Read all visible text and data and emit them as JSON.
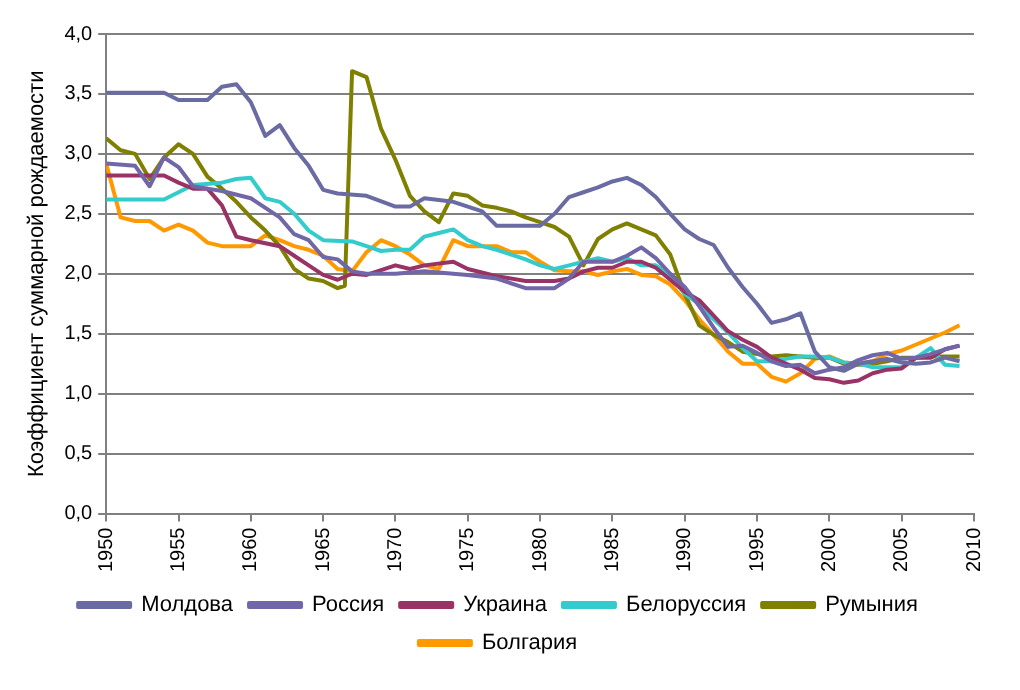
{
  "chart_data": {
    "type": "line",
    "ylabel": "Коэффициент суммарной рождаемости",
    "xlim": [
      1950,
      2010
    ],
    "xticks": [
      1950,
      1955,
      1960,
      1965,
      1970,
      1975,
      1980,
      1985,
      1990,
      1995,
      2000,
      2005,
      2010
    ],
    "ylim": [
      0,
      4
    ],
    "yticks": [
      {
        "value": 0,
        "label": "0,0"
      },
      {
        "value": 0.5,
        "label": "0,5"
      },
      {
        "value": 1,
        "label": "1,0"
      },
      {
        "value": 1.5,
        "label": "1,5"
      },
      {
        "value": 2,
        "label": "2,0"
      },
      {
        "value": 2.5,
        "label": "2,5"
      },
      {
        "value": 3,
        "label": "3,0"
      },
      {
        "value": 3.5,
        "label": "3,5"
      },
      {
        "value": 4,
        "label": "4,0"
      }
    ],
    "grid": "y",
    "legend": "bottom",
    "marker": "none",
    "line_style": "solid",
    "series": [
      {
        "name": "Молдова",
        "color": "#6b6ba3",
        "x": [
          1950,
          1954,
          1955,
          1957,
          1958,
          1959,
          1960,
          1961,
          1962,
          1963,
          1964,
          1965,
          1966,
          1968,
          1970,
          1971,
          1972,
          1974,
          1976,
          1977,
          1980,
          1981,
          1982,
          1983,
          1984,
          1985,
          1986,
          1987,
          1988,
          1989,
          1990,
          1991,
          1992,
          1993,
          1994,
          1995,
          1996,
          1997,
          1998,
          1999,
          2000,
          2001,
          2002,
          2003,
          2004,
          2005,
          2006,
          2007,
          2008,
          2009
        ],
        "values": [
          3.51,
          3.51,
          3.45,
          3.45,
          3.56,
          3.58,
          3.43,
          3.15,
          3.24,
          3.05,
          2.9,
          2.7,
          2.67,
          2.65,
          2.56,
          2.56,
          2.63,
          2.6,
          2.52,
          2.4,
          2.4,
          2.5,
          2.64,
          2.68,
          2.72,
          2.77,
          2.8,
          2.74,
          2.64,
          2.5,
          2.37,
          2.29,
          2.24,
          2.05,
          1.89,
          1.75,
          1.59,
          1.62,
          1.67,
          1.35,
          1.22,
          1.19,
          1.25,
          1.27,
          1.29,
          1.26,
          1.25,
          1.26,
          1.3,
          1.27
        ]
      },
      {
        "name": "Россия",
        "color": "#7066a8",
        "x": [
          1950,
          1952,
          1953,
          1954,
          1955,
          1956,
          1957,
          1958,
          1960,
          1962,
          1963,
          1964,
          1965,
          1966,
          1967,
          1968,
          1970,
          1972,
          1975,
          1977,
          1979,
          1981,
          1982,
          1983,
          1984,
          1985,
          1986,
          1987,
          1988,
          1989,
          1990,
          1991,
          1992,
          1993,
          1994,
          1995,
          1996,
          1997,
          1998,
          1999,
          2000,
          2001,
          2002,
          2003,
          2004,
          2005,
          2006,
          2007,
          2008,
          2009
        ],
        "values": [
          2.92,
          2.9,
          2.73,
          2.97,
          2.89,
          2.73,
          2.71,
          2.69,
          2.63,
          2.47,
          2.33,
          2.28,
          2.14,
          2.12,
          2.02,
          2.0,
          2.0,
          2.02,
          1.99,
          1.96,
          1.88,
          1.88,
          1.96,
          2.1,
          2.1,
          2.1,
          2.15,
          2.22,
          2.13,
          2.0,
          1.89,
          1.73,
          1.55,
          1.39,
          1.4,
          1.34,
          1.27,
          1.23,
          1.24,
          1.17,
          1.2,
          1.22,
          1.28,
          1.32,
          1.34,
          1.29,
          1.3,
          1.33,
          1.37,
          1.4
        ]
      },
      {
        "name": "Украина",
        "color": "#993366",
        "x": [
          1950,
          1954,
          1955,
          1956,
          1957,
          1958,
          1959,
          1960,
          1962,
          1963,
          1964,
          1965,
          1966,
          1967,
          1968,
          1970,
          1971,
          1972,
          1974,
          1975,
          1977,
          1979,
          1981,
          1982,
          1983,
          1984,
          1985,
          1986,
          1987,
          1988,
          1989,
          1990,
          1991,
          1992,
          1993,
          1994,
          1995,
          1996,
          1997,
          1998,
          1999,
          2000,
          2001,
          2002,
          2003,
          2004,
          2005,
          2006,
          2007,
          2008,
          2009
        ],
        "values": [
          2.82,
          2.82,
          2.76,
          2.71,
          2.71,
          2.57,
          2.31,
          2.28,
          2.23,
          2.15,
          2.07,
          1.99,
          1.95,
          2.0,
          1.99,
          2.07,
          2.04,
          2.07,
          2.1,
          2.04,
          1.98,
          1.94,
          1.94,
          1.96,
          2.02,
          2.05,
          2.05,
          2.1,
          2.1,
          2.05,
          1.95,
          1.85,
          1.78,
          1.65,
          1.52,
          1.45,
          1.39,
          1.3,
          1.25,
          1.2,
          1.13,
          1.12,
          1.09,
          1.11,
          1.17,
          1.2,
          1.21,
          1.3,
          1.3,
          1.37,
          1.4
        ]
      },
      {
        "name": "Белоруссия",
        "color": "#33cccc",
        "x": [
          1950,
          1954,
          1955,
          1956,
          1958,
          1959,
          1960,
          1961,
          1962,
          1963,
          1964,
          1965,
          1967,
          1968,
          1969,
          1970,
          1971,
          1972,
          1973,
          1974,
          1975,
          1976,
          1977,
          1978,
          1979,
          1980,
          1981,
          1982,
          1983,
          1984,
          1985,
          1986,
          1987,
          1988,
          1989,
          1990,
          1991,
          1992,
          1993,
          1994,
          1995,
          1996,
          1997,
          1998,
          1999,
          2000,
          2001,
          2002,
          2003,
          2004,
          2005,
          2006,
          2007,
          2008,
          2009
        ],
        "values": [
          2.62,
          2.62,
          2.68,
          2.74,
          2.76,
          2.79,
          2.8,
          2.63,
          2.6,
          2.5,
          2.36,
          2.28,
          2.27,
          2.23,
          2.19,
          2.2,
          2.2,
          2.31,
          2.34,
          2.37,
          2.28,
          2.23,
          2.2,
          2.16,
          2.12,
          2.07,
          2.04,
          2.07,
          2.1,
          2.13,
          2.1,
          2.13,
          2.07,
          2.07,
          1.99,
          1.83,
          1.75,
          1.62,
          1.51,
          1.38,
          1.27,
          1.27,
          1.29,
          1.31,
          1.31,
          1.3,
          1.26,
          1.25,
          1.22,
          1.22,
          1.22,
          1.3,
          1.38,
          1.24,
          1.23
        ]
      },
      {
        "name": "Румыния",
        "color": "#808000",
        "x": [
          1950,
          1951,
          1952,
          1953,
          1954,
          1955,
          1956,
          1957,
          1958,
          1959,
          1960,
          1961,
          1962,
          1963,
          1964,
          1965,
          1966,
          1966.5,
          1967,
          1968,
          1969,
          1970,
          1971,
          1972,
          1973,
          1974,
          1975,
          1976,
          1977,
          1978,
          1979,
          1980,
          1981,
          1982,
          1983,
          1984,
          1985,
          1986,
          1987,
          1988,
          1989,
          1990,
          1991,
          1992,
          1993,
          1994,
          1995,
          1996,
          1997,
          1998,
          1999,
          2000,
          2001,
          2002,
          2003,
          2004,
          2005,
          2006,
          2007,
          2008,
          2009
        ],
        "values": [
          3.13,
          3.03,
          3.0,
          2.79,
          2.97,
          3.08,
          3.0,
          2.81,
          2.71,
          2.6,
          2.47,
          2.36,
          2.23,
          2.04,
          1.96,
          1.94,
          1.88,
          1.9,
          3.69,
          3.64,
          3.21,
          2.95,
          2.65,
          2.52,
          2.43,
          2.67,
          2.65,
          2.57,
          2.55,
          2.52,
          2.47,
          2.43,
          2.39,
          2.31,
          2.07,
          2.29,
          2.37,
          2.42,
          2.37,
          2.32,
          2.16,
          1.83,
          1.57,
          1.49,
          1.43,
          1.35,
          1.33,
          1.31,
          1.32,
          1.31,
          1.3,
          1.3,
          1.25,
          1.24,
          1.25,
          1.27,
          1.3,
          1.3,
          1.31,
          1.31,
          1.31
        ]
      },
      {
        "name": "Болгария",
        "color": "#ff9900",
        "x": [
          1950,
          1951,
          1952,
          1953,
          1954,
          1955,
          1956,
          1957,
          1958,
          1960,
          1961,
          1962,
          1963,
          1964,
          1965,
          1966,
          1967,
          1968,
          1969,
          1970,
          1971,
          1972,
          1973,
          1974,
          1975,
          1977,
          1978,
          1979,
          1980,
          1981,
          1982,
          1983,
          1984,
          1985,
          1986,
          1987,
          1988,
          1989,
          1990,
          1991,
          1992,
          1993,
          1994,
          1995,
          1996,
          1997,
          1998,
          1999,
          2000,
          2001,
          2002,
          2003,
          2004,
          2005,
          2006,
          2007,
          2008,
          2009
        ],
        "values": [
          2.92,
          2.47,
          2.44,
          2.44,
          2.36,
          2.41,
          2.36,
          2.26,
          2.23,
          2.23,
          2.32,
          2.28,
          2.23,
          2.2,
          2.15,
          2.04,
          2.02,
          2.18,
          2.28,
          2.23,
          2.16,
          2.07,
          2.04,
          2.28,
          2.23,
          2.23,
          2.18,
          2.18,
          2.1,
          2.03,
          2.02,
          2.02,
          1.99,
          2.02,
          2.04,
          1.99,
          1.98,
          1.91,
          1.78,
          1.62,
          1.49,
          1.35,
          1.25,
          1.25,
          1.14,
          1.1,
          1.17,
          1.29,
          1.31,
          1.26,
          1.25,
          1.27,
          1.33,
          1.36,
          1.41,
          1.46,
          1.51,
          1.57
        ]
      }
    ]
  }
}
